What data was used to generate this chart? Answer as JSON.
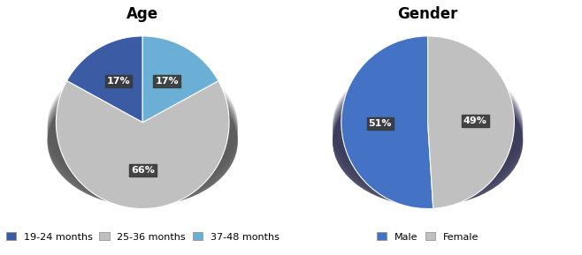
{
  "age_labels": [
    "19-24 months",
    "25-36 months",
    "37-48 months"
  ],
  "age_values": [
    17,
    66,
    17
  ],
  "age_colors": [
    "#3B5BA5",
    "#C0C0C0",
    "#6BAED6"
  ],
  "age_depth_color": "#5a5a5a",
  "age_title": "Age",
  "age_startangle": 90,
  "gender_labels": [
    "Male",
    "Female"
  ],
  "gender_values": [
    51,
    49
  ],
  "gender_colors": [
    "#4472C4",
    "#C0C0C0"
  ],
  "gender_depth_color": "#3a3a5a",
  "gender_title": "Gender",
  "gender_startangle": 90,
  "label_bg_color": "#3a3a3a",
  "label_text_color": "#ffffff",
  "title_fontsize": 12,
  "label_fontsize": 8,
  "legend_fontsize": 8,
  "figure_bg": "#ffffff"
}
